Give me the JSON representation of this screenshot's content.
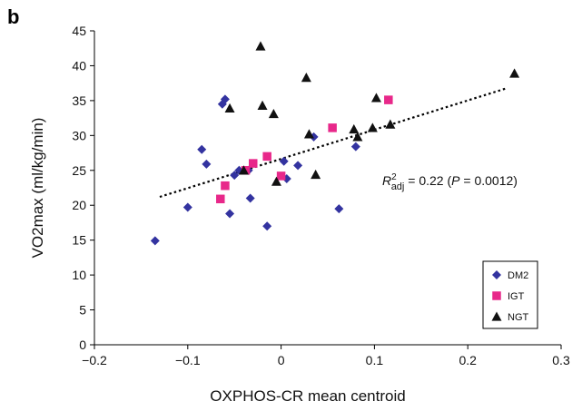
{
  "panel_label": "b",
  "chart_data": {
    "type": "scatter",
    "xlabel": "OXPHOS-CR mean centroid",
    "ylabel": "VO2max (ml/kg/min)",
    "xlim": [
      -0.2,
      0.3
    ],
    "ylim": [
      0,
      45
    ],
    "xticks": [
      "−0.2",
      "−0.1",
      "0",
      "0.1",
      "0.2",
      "0.3"
    ],
    "yticks": [
      "0",
      "5",
      "10",
      "15",
      "20",
      "25",
      "30",
      "35",
      "40",
      "45"
    ],
    "grid": false,
    "legend_position": "bottom-right",
    "annotation": {
      "r_symbol": "R",
      "r_sup": "2",
      "r_sub": "adj",
      "eq_text": " = 0.22 (",
      "p_symbol": "P",
      "p_text": " = 0.0012)"
    },
    "trendline": {
      "style": "dotted",
      "color": "#000000",
      "x": [
        -0.13,
        0.24
      ],
      "y": [
        21.2,
        36.7
      ]
    },
    "series": [
      {
        "name": "DM2",
        "marker": "diamond",
        "color": "#3333a0",
        "points": [
          [
            -0.135,
            14.9
          ],
          [
            -0.1,
            19.7
          ],
          [
            -0.085,
            28.0
          ],
          [
            -0.08,
            25.9
          ],
          [
            -0.063,
            34.5
          ],
          [
            -0.06,
            35.2
          ],
          [
            -0.055,
            18.8
          ],
          [
            -0.05,
            24.3
          ],
          [
            -0.045,
            25.0
          ],
          [
            -0.035,
            25.0
          ],
          [
            -0.033,
            21.0
          ],
          [
            -0.015,
            17.0
          ],
          [
            0.003,
            26.3
          ],
          [
            0.006,
            23.8
          ],
          [
            0.018,
            25.7
          ],
          [
            0.035,
            29.8
          ],
          [
            0.062,
            19.5
          ],
          [
            0.08,
            28.4
          ]
        ]
      },
      {
        "name": "IGT",
        "marker": "square",
        "color": "#e8288a",
        "points": [
          [
            -0.065,
            20.9
          ],
          [
            -0.06,
            22.8
          ],
          [
            -0.038,
            25.0
          ],
          [
            -0.03,
            26.0
          ],
          [
            -0.015,
            27.0
          ],
          [
            0.0,
            24.2
          ],
          [
            0.055,
            31.1
          ],
          [
            0.115,
            35.1
          ]
        ]
      },
      {
        "name": "NGT",
        "marker": "triangle",
        "color": "#111111",
        "points": [
          [
            -0.055,
            33.9
          ],
          [
            -0.04,
            25.0
          ],
          [
            -0.022,
            42.8
          ],
          [
            -0.02,
            34.3
          ],
          [
            -0.008,
            33.1
          ],
          [
            -0.005,
            23.4
          ],
          [
            0.027,
            38.3
          ],
          [
            0.03,
            30.2
          ],
          [
            0.037,
            24.4
          ],
          [
            0.078,
            30.9
          ],
          [
            0.082,
            29.8
          ],
          [
            0.098,
            31.1
          ],
          [
            0.102,
            35.4
          ],
          [
            0.117,
            31.6
          ],
          [
            0.25,
            38.9
          ]
        ]
      }
    ]
  }
}
